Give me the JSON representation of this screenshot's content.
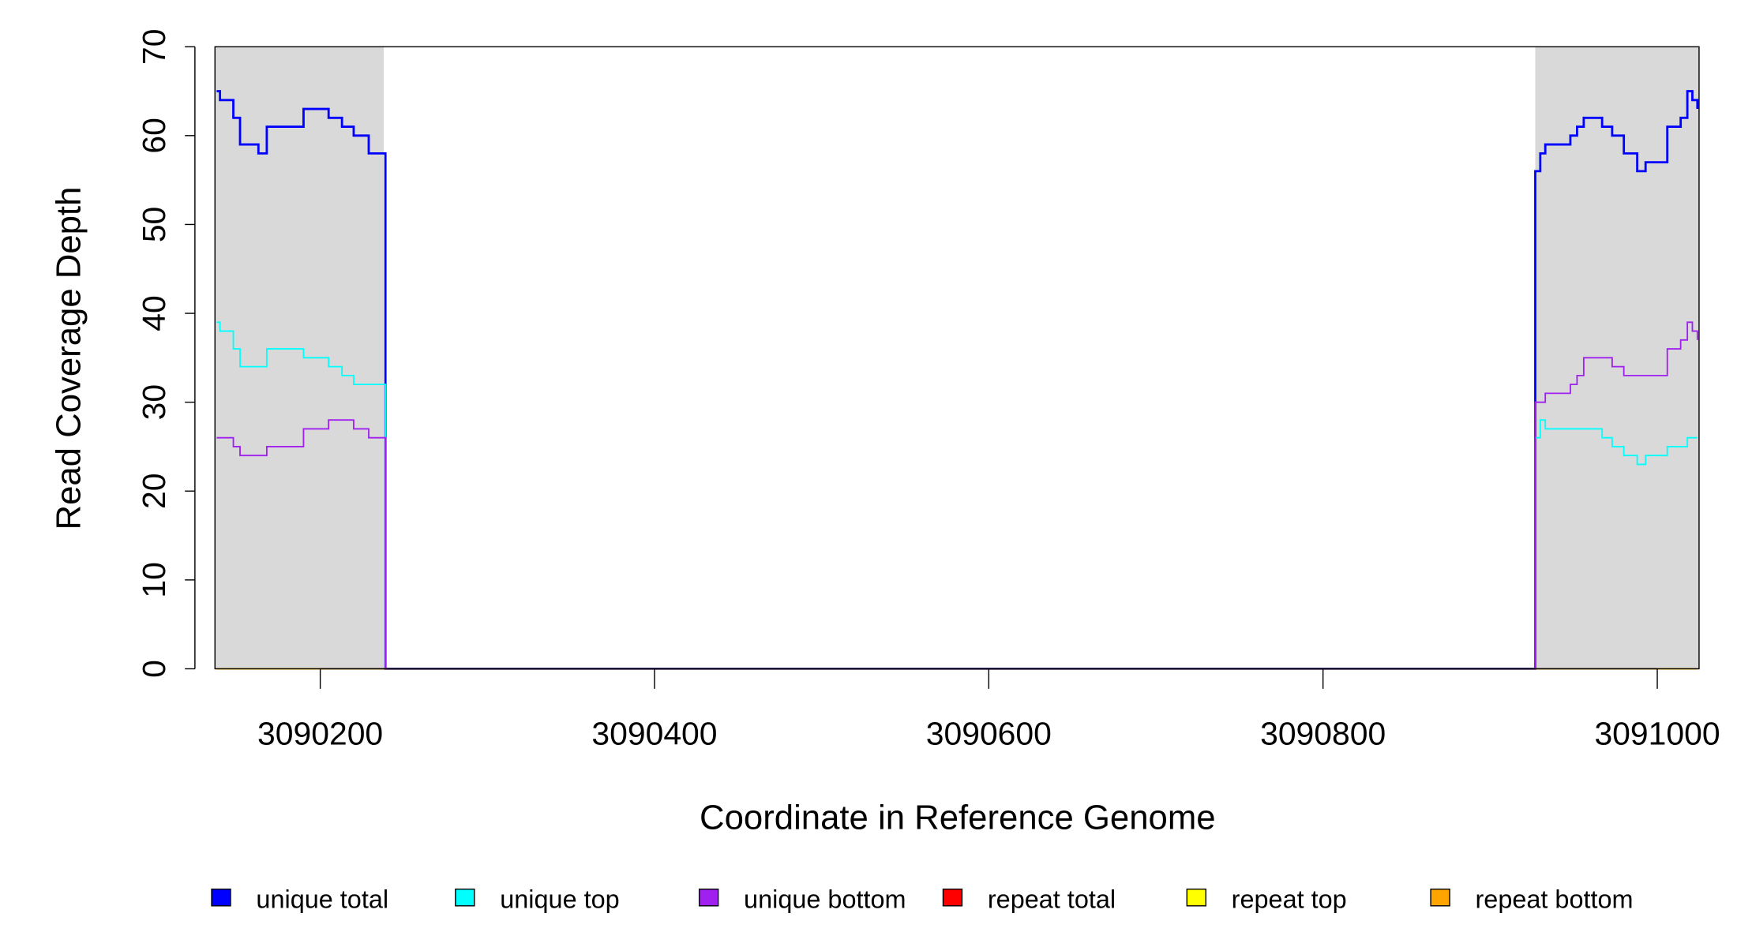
{
  "chart_data": {
    "type": "line",
    "drawstyle": "steps-post",
    "xlabel": "Coordinate in Reference Genome",
    "ylabel": "Read Coverage Depth",
    "xlim": [
      3090137,
      3091025
    ],
    "ylim": [
      0,
      70
    ],
    "xticks": [
      3090200,
      3090400,
      3090600,
      3090800,
      3091000
    ],
    "yticks": [
      0,
      10,
      20,
      30,
      40,
      50,
      60,
      70
    ],
    "shaded_regions": [
      [
        3090137,
        3090238
      ],
      [
        3090927,
        3091025
      ]
    ],
    "shade_color": "#d9d9d9",
    "x": [
      3090138,
      3090140,
      3090148,
      3090152,
      3090163,
      3090168,
      3090178,
      3090190,
      3090205,
      3090213,
      3090220,
      3090229,
      3090239,
      3090927,
      3090930,
      3090933,
      3090948,
      3090952,
      3090956,
      3090967,
      3090973,
      3090980,
      3090988,
      3090993,
      3091006,
      3091014,
      3091018,
      3091021,
      3091024
    ],
    "series": [
      {
        "name": "unique total",
        "color": "#0000ff",
        "values": [
          65,
          64,
          62,
          59,
          58,
          61,
          61,
          63,
          62,
          61,
          60,
          58,
          0,
          56,
          58,
          59,
          60,
          61,
          62,
          61,
          60,
          58,
          56,
          57,
          61,
          62,
          65,
          64,
          63
        ]
      },
      {
        "name": "unique top",
        "color": "#00ffff",
        "values": [
          39,
          38,
          36,
          34,
          34,
          36,
          36,
          35,
          34,
          33,
          32,
          32,
          0,
          26,
          28,
          27,
          27,
          27,
          27,
          26,
          25,
          24,
          23,
          24,
          25,
          25,
          26,
          26,
          26
        ]
      },
      {
        "name": "unique bottom",
        "color": "#a020f0",
        "values": [
          26,
          26,
          25,
          24,
          24,
          25,
          25,
          27,
          28,
          28,
          27,
          26,
          0,
          30,
          30,
          31,
          32,
          33,
          35,
          35,
          34,
          33,
          33,
          33,
          36,
          37,
          39,
          38,
          37
        ]
      },
      {
        "name": "repeat total",
        "color": "#ff0000",
        "values": [
          0,
          0,
          0,
          0,
          0,
          0,
          0,
          0,
          0,
          0,
          0,
          0,
          0,
          0,
          0,
          0,
          0,
          0,
          0,
          0,
          0,
          0,
          0,
          0,
          0,
          0,
          0,
          0,
          0
        ]
      },
      {
        "name": "repeat top",
        "color": "#ffff00",
        "values": [
          0,
          0,
          0,
          0,
          0,
          0,
          0,
          0,
          0,
          0,
          0,
          0,
          0,
          0,
          0,
          0,
          0,
          0,
          0,
          0,
          0,
          0,
          0,
          0,
          0,
          0,
          0,
          0,
          0
        ]
      },
      {
        "name": "repeat bottom",
        "color": "#ffa500",
        "values": [
          0,
          0,
          0,
          0,
          0,
          0,
          0,
          0,
          0,
          0,
          0,
          0,
          0,
          0,
          0,
          0,
          0,
          0,
          0,
          0,
          0,
          0,
          0,
          0,
          0,
          0,
          0,
          0,
          0
        ]
      }
    ]
  }
}
